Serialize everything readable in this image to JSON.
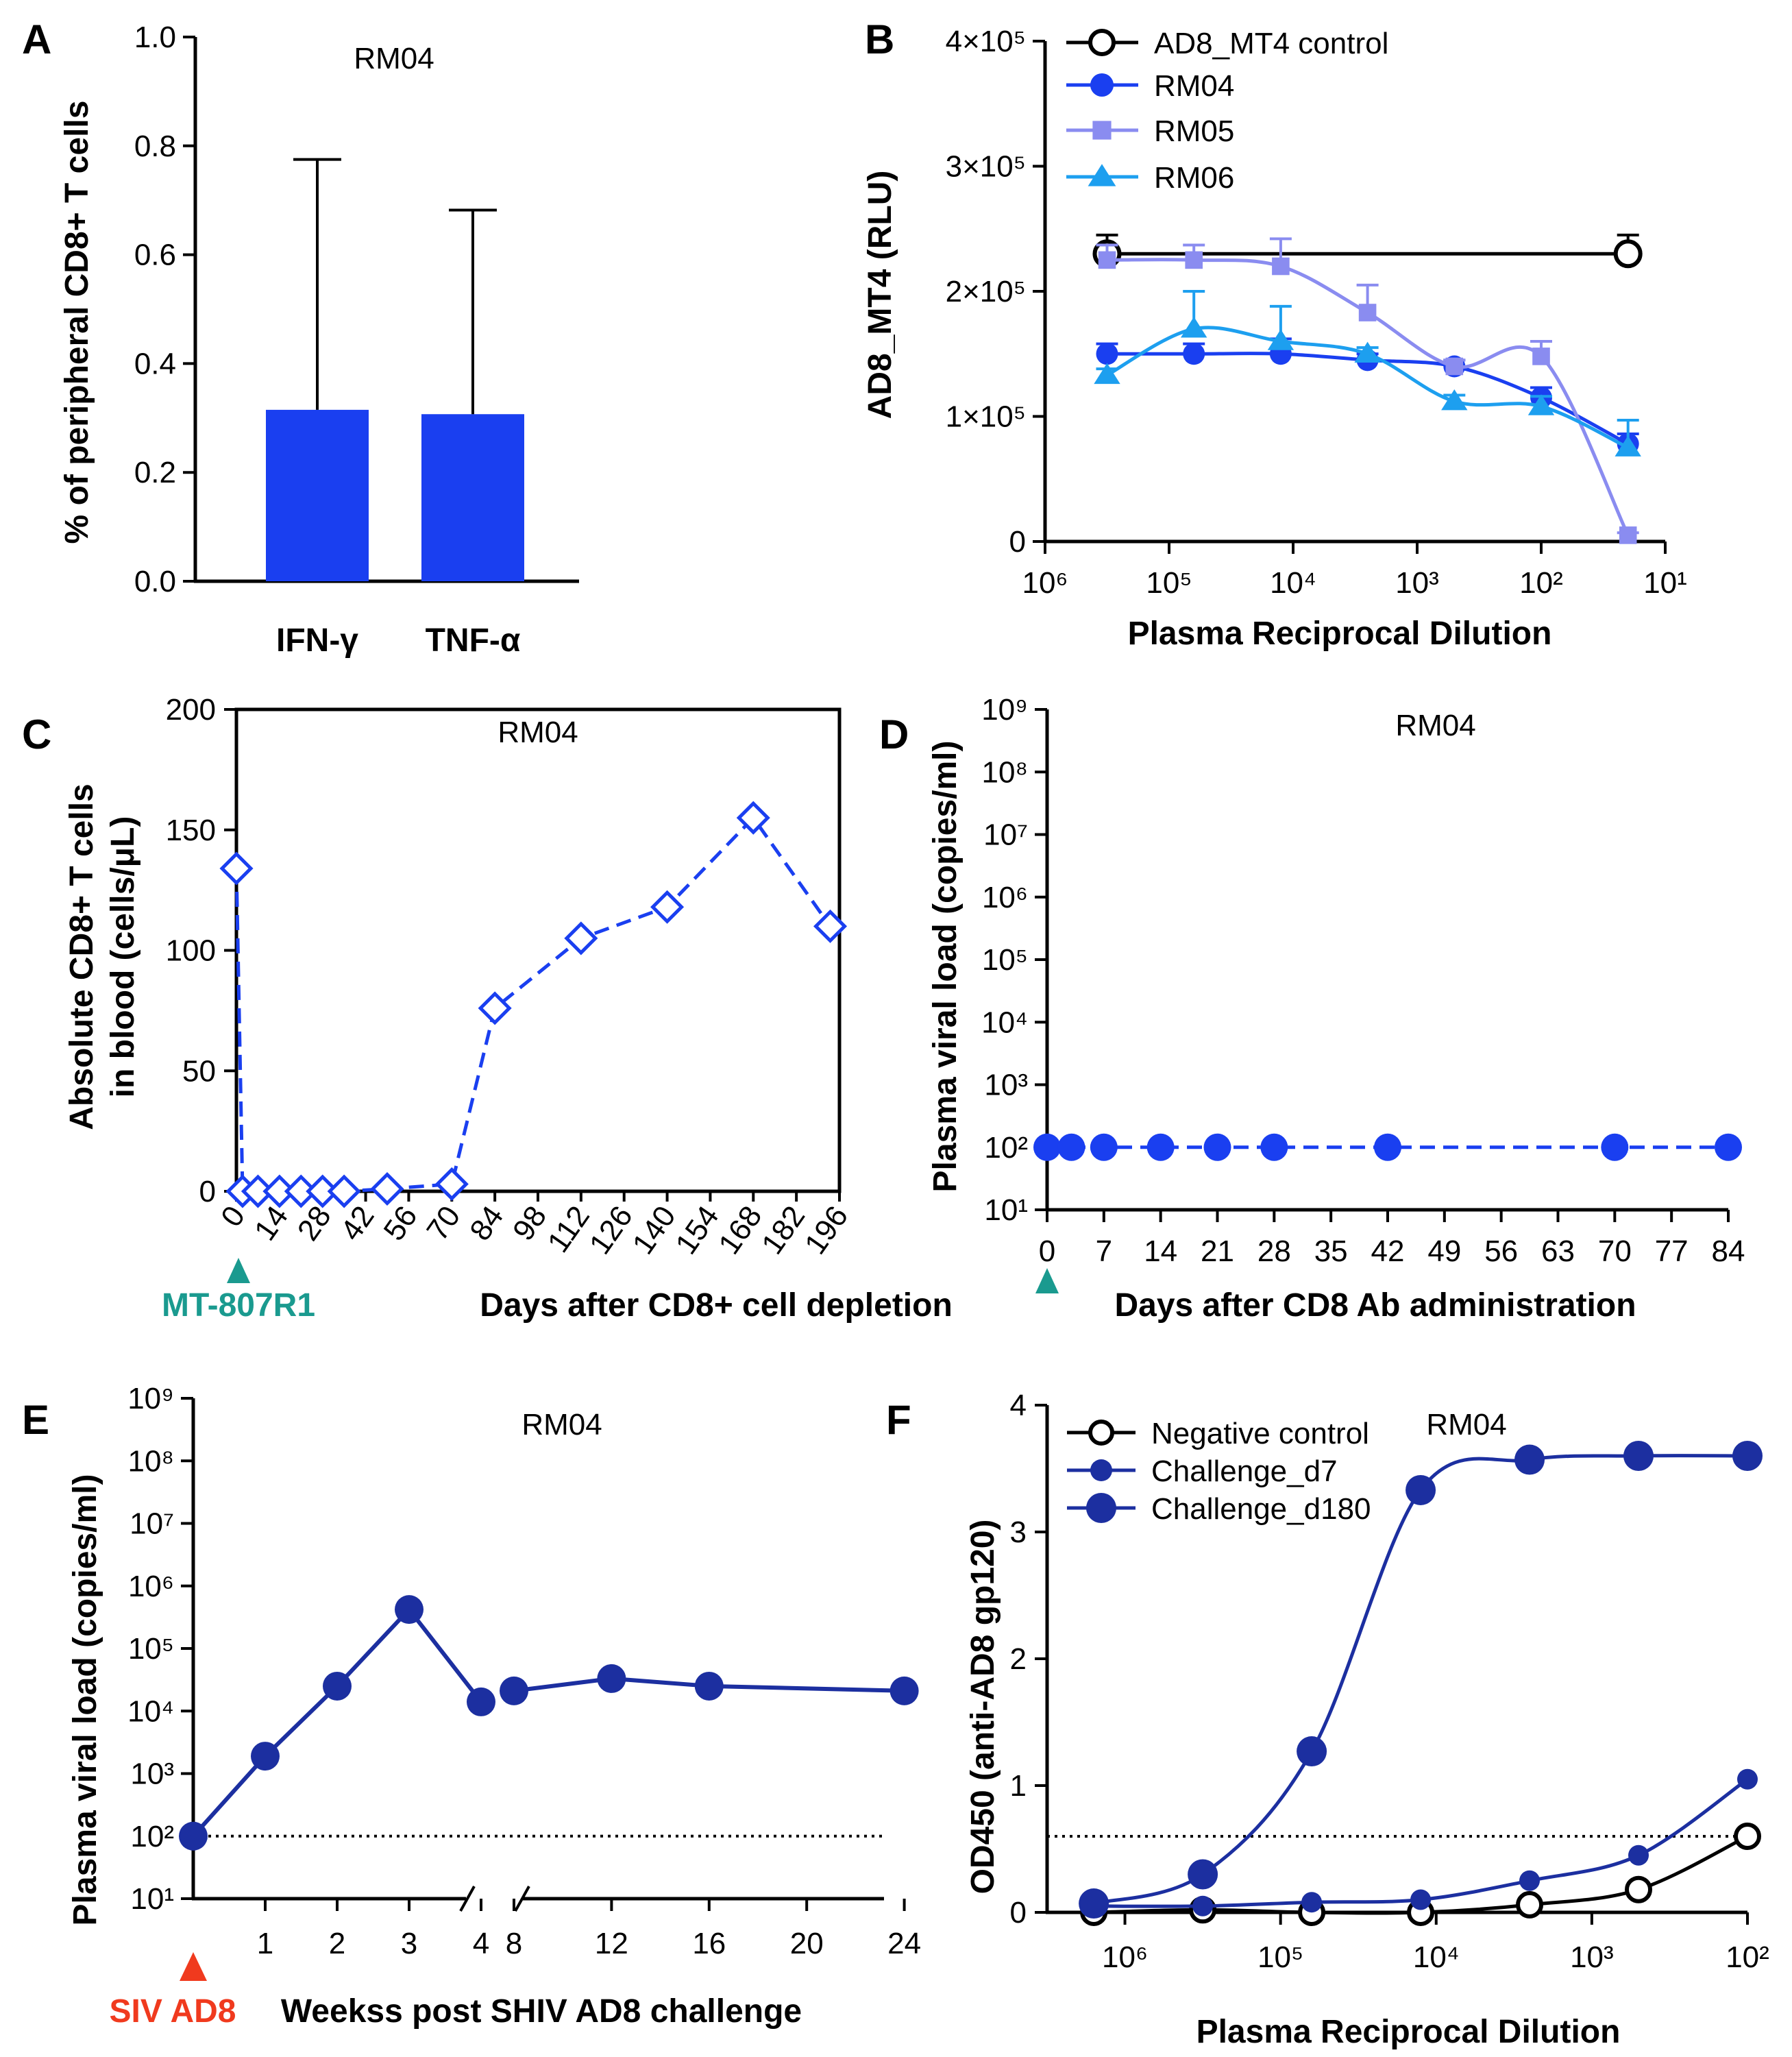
{
  "chart_data": [
    {
      "panel": "A",
      "type": "bar",
      "title": "RM04",
      "categories": [
        "IFN-γ",
        "TNF-α"
      ],
      "values": [
        0.315,
        0.307
      ],
      "error_upper": [
        0.775,
        0.682
      ],
      "ylabel": "% of peripheral CD8+ T cells",
      "xlabel": "",
      "ylim": [
        0,
        1.0
      ],
      "yticks": [
        "0.0",
        "0.2",
        "0.4",
        "0.6",
        "0.8",
        "1.0"
      ],
      "color": "#1a3ff0"
    },
    {
      "panel": "B",
      "type": "line",
      "title": "",
      "xlabel": "Plasma Reciprocal Dilution",
      "ylabel": "AD8_MT4 (RLU)",
      "x_scale": "log10-reversed",
      "xlim_log10": [
        6,
        1
      ],
      "ylim": [
        0,
        400000
      ],
      "yticks": [
        "0",
        "1×10⁵",
        "2×10⁵",
        "3×10⁵",
        "4×10⁵"
      ],
      "xticks": [
        "10⁶",
        "10⁵",
        "10⁴",
        "10³",
        "10²",
        "10¹"
      ],
      "x_log10": [
        5.5,
        4.8,
        4.1,
        3.4,
        2.7,
        2.0,
        1.3
      ],
      "series": [
        {
          "name": "AD8_MT4 control",
          "marker": "open-circle",
          "color": "#000000",
          "points_x_log10": [
            5.5,
            1.3
          ],
          "values": [
            230000,
            230000
          ],
          "errors": [
            15000,
            15000
          ]
        },
        {
          "name": "RM04",
          "marker": "circle",
          "color": "#1a3ff0",
          "values": [
            150000,
            150000,
            150000,
            145000,
            140000,
            115000,
            78000
          ],
          "errors": [
            8000,
            8000,
            12000,
            5000,
            5000,
            8000,
            8000
          ]
        },
        {
          "name": "RM05",
          "marker": "square",
          "color": "#8a8cf0",
          "values": [
            225000,
            225000,
            220000,
            183000,
            140000,
            148000,
            5000
          ],
          "errors": [
            12000,
            12000,
            22000,
            22000,
            5000,
            12000,
            2000
          ]
        },
        {
          "name": "RM06",
          "marker": "triangle",
          "color": "#1d9fef",
          "values": [
            133000,
            170000,
            160000,
            150000,
            112000,
            108000,
            75000
          ],
          "errors": [
            5000,
            30000,
            28000,
            5000,
            5000,
            8000,
            22000
          ]
        }
      ]
    },
    {
      "panel": "C",
      "type": "line",
      "title": "RM04",
      "xlabel": "Days after CD8+ cell depletion",
      "ylabel_lines": [
        "Absolute CD8+ T cells",
        "in blood (cells/μL)"
      ],
      "xlim": [
        0,
        196
      ],
      "ylim": [
        0,
        200
      ],
      "yticks": [
        "0",
        "50",
        "100",
        "150",
        "200"
      ],
      "xticks": [
        "0",
        "14",
        "28",
        "42",
        "56",
        "70",
        "84",
        "98",
        "112",
        "126",
        "140",
        "154",
        "168",
        "182",
        "196"
      ],
      "annotation": "MT-807R1",
      "annotation_color": "#1a9a8f",
      "color": "#1a3ff0",
      "series": [
        {
          "name": "RM04",
          "x": [
            0,
            2,
            7,
            14,
            21,
            28,
            35,
            49,
            70,
            84,
            112,
            140,
            168,
            193
          ],
          "values": [
            134,
            0,
            0,
            0,
            0,
            0,
            0,
            1,
            3,
            76,
            105,
            118,
            155,
            110
          ]
        }
      ]
    },
    {
      "panel": "D",
      "type": "line",
      "title": "RM04",
      "xlabel": "Days after CD8 Ab administration",
      "ylabel": "Plasma viral load (copies/ml)",
      "xlim": [
        0,
        84
      ],
      "ylim_log10": [
        1,
        9
      ],
      "xticks": [
        "0",
        "7",
        "14",
        "21",
        "28",
        "35",
        "42",
        "49",
        "56",
        "63",
        "70",
        "77",
        "84"
      ],
      "yticks": [
        "10¹",
        "10²",
        "10³",
        "10⁴",
        "10⁵",
        "10⁶",
        "10⁷",
        "10⁸",
        "10⁹"
      ],
      "color": "#1a3ff0",
      "series": [
        {
          "name": "RM04",
          "x": [
            0,
            3,
            7,
            14,
            21,
            28,
            42,
            70,
            84
          ],
          "values": [
            100,
            100,
            100,
            100,
            100,
            100,
            100,
            100,
            100
          ]
        }
      ]
    },
    {
      "panel": "E",
      "type": "line",
      "title": "RM04",
      "xlabel": "Weekss post SHIV AD8 challenge",
      "ylabel": "Plasma viral load (copies/ml)",
      "ylim_log10": [
        1,
        9
      ],
      "yticks": [
        "10¹",
        "10²",
        "10³",
        "10⁴",
        "10⁵",
        "10⁶",
        "10⁷",
        "10⁸",
        "10⁹"
      ],
      "xticks": [
        "1",
        "2",
        "3",
        "4",
        "8",
        "12",
        "16",
        "20",
        "24"
      ],
      "threshold": 100,
      "annotation": "SIV AD8",
      "annotation_color": "#f03a1e",
      "color": "#1c2fa0",
      "series": [
        {
          "name": "segment-1",
          "x": [
            0,
            1,
            2,
            3,
            4
          ],
          "values": [
            100,
            1900,
            25000,
            420000,
            14000
          ]
        },
        {
          "name": "segment-2",
          "x": [
            8,
            12,
            16,
            24
          ],
          "values": [
            21000,
            33000,
            25000,
            21000
          ]
        }
      ]
    },
    {
      "panel": "F",
      "type": "line",
      "title": "RM04",
      "xlabel": "Plasma Reciprocal Dilution",
      "ylabel": "OD450 (anti-AD8 gp120)",
      "x_scale": "log10-reversed",
      "xlim_log10": [
        6.5,
        2
      ],
      "ylim": [
        0,
        4
      ],
      "yticks": [
        "0",
        "1",
        "2",
        "3",
        "4"
      ],
      "xticks": [
        "10⁶",
        "10⁵",
        "10⁴",
        "10³",
        "10²"
      ],
      "threshold": 0.6,
      "x_log10": [
        6.2,
        5.5,
        4.8,
        4.1,
        3.4,
        2.7,
        2.0
      ],
      "series": [
        {
          "name": "Negative control",
          "marker": "open-circle",
          "color": "#000000",
          "values": [
            0.0,
            0.02,
            0.0,
            0.0,
            0.06,
            0.18,
            0.6
          ]
        },
        {
          "name": "Challenge_d7",
          "marker": "circle-small",
          "color": "#1c2fa0",
          "values": [
            0.05,
            0.05,
            0.08,
            0.1,
            0.25,
            0.45,
            1.05
          ]
        },
        {
          "name": "Challenge_d180",
          "marker": "circle-large",
          "color": "#1c2fa0",
          "values": [
            0.07,
            0.3,
            1.27,
            3.33,
            3.57,
            3.6,
            3.6
          ]
        }
      ]
    }
  ],
  "labels": {
    "panelA": {
      "letter": "A",
      "title": "RM04",
      "ylabel": "% of peripheral CD8+ T cells"
    },
    "panelB": {
      "letter": "B",
      "xlabel": "Plasma Reciprocal Dilution",
      "ylabel": "AD8_MT4 (RLU)"
    },
    "panelC": {
      "letter": "C",
      "title": "RM04",
      "ylabel1": "Absolute CD8+ T cells",
      "ylabel2": "in blood (cells/μL)",
      "xlabel": "Days after CD8+ cell depletion",
      "annot": "MT-807R1"
    },
    "panelD": {
      "letter": "D",
      "title": "RM04",
      "ylabel": "Plasma viral load (copies/ml)",
      "xlabel": "Days after CD8 Ab administration"
    },
    "panelE": {
      "letter": "E",
      "title": "RM04",
      "ylabel": "Plasma viral load (copies/ml)",
      "xlabel": "Weekss post SHIV AD8 challenge",
      "annot": "SIV AD8"
    },
    "panelF": {
      "letter": "F",
      "title": "RM04",
      "ylabel": "OD450 (anti-AD8 gp120)",
      "xlabel": "Plasma Reciprocal Dilution"
    }
  }
}
